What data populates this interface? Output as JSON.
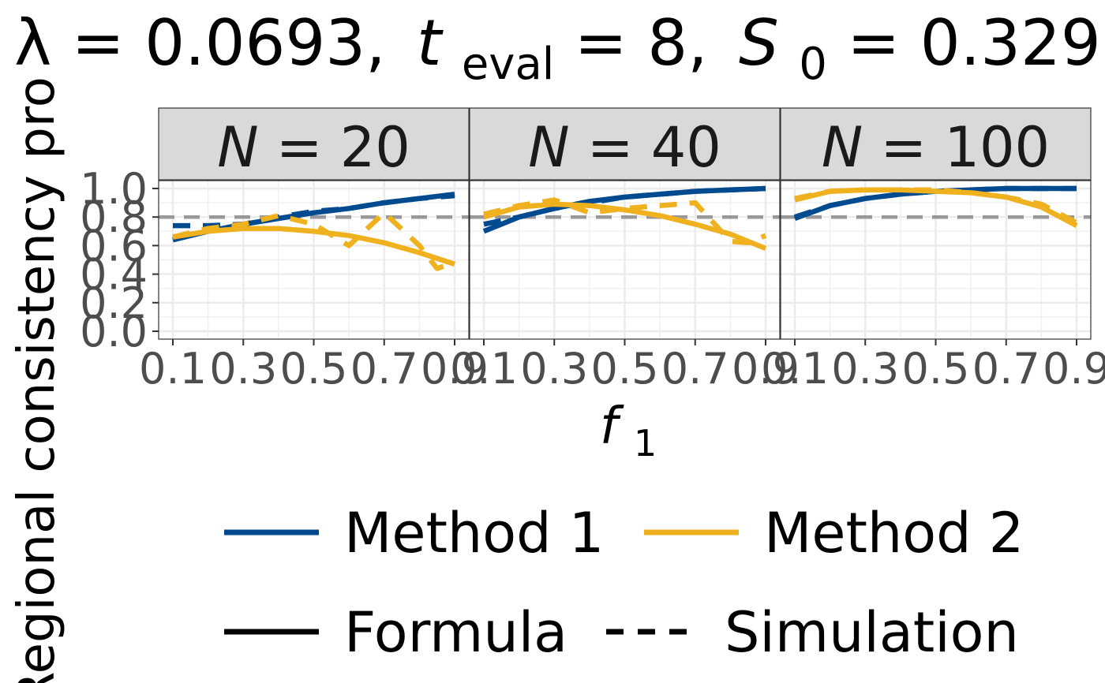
{
  "chart_data": {
    "type": "line",
    "title": {
      "lambda": "λ = 0.0693,",
      "t_main": "t",
      "t_sub": "eval",
      "t_rest": " = 8,",
      "s_main": "S",
      "s_sub": "0",
      "s_rest": " = 0.329"
    },
    "ylabel": "Regional consistency pro",
    "xlabel": {
      "main": "f",
      "sub": "1"
    },
    "ylim": [
      0,
      1
    ],
    "xlim": [
      0.1,
      0.9
    ],
    "y_ticks": [
      "0.0",
      "0.2",
      "0.4",
      "0.6",
      "0.8",
      "1.0"
    ],
    "x_tick_labels": [
      "0.1",
      "0.3",
      "0.5",
      "0.7",
      "0.9"
    ],
    "x_ticks": [
      0.1,
      0.3,
      0.5,
      0.7,
      0.9
    ],
    "reference_line": 0.8,
    "colors": {
      "method1": "#004a8f",
      "method2": "#efb11e",
      "reference": "#999999"
    },
    "legend": {
      "position": "bottom",
      "method1": "Method 1",
      "method2": "Method 2",
      "formula": "Formula",
      "simulation": "Simulation"
    },
    "panels": [
      {
        "strip": "N = 20",
        "series": [
          {
            "name": "Method 1 Formula",
            "method": 1,
            "linetype": "solid",
            "x": [
              0.1,
              0.2,
              0.3,
              0.4,
              0.5,
              0.6,
              0.7,
              0.8,
              0.9
            ],
            "y": [
              0.64,
              0.7,
              0.75,
              0.79,
              0.83,
              0.86,
              0.9,
              0.93,
              0.96
            ]
          },
          {
            "name": "Method 1 Simulation",
            "method": 1,
            "linetype": "dashed",
            "x": [
              0.1,
              0.2,
              0.3,
              0.4,
              0.5,
              0.6,
              0.7,
              0.8,
              0.9
            ],
            "y": [
              0.74,
              0.74,
              0.75,
              0.8,
              0.84,
              0.86,
              0.9,
              0.93,
              0.95
            ]
          },
          {
            "name": "Method 2 Formula",
            "method": 2,
            "linetype": "solid",
            "x": [
              0.1,
              0.2,
              0.3,
              0.4,
              0.5,
              0.6,
              0.7,
              0.8,
              0.9
            ],
            "y": [
              0.66,
              0.7,
              0.72,
              0.72,
              0.7,
              0.67,
              0.62,
              0.55,
              0.47
            ]
          },
          {
            "name": "Method 2 Simulation",
            "method": 2,
            "linetype": "dashed",
            "x": [
              0.1,
              0.2,
              0.3,
              0.4,
              0.5,
              0.6,
              0.7,
              0.8,
              0.85,
              0.9
            ],
            "y": [
              0.66,
              0.72,
              0.75,
              0.81,
              0.75,
              0.6,
              0.83,
              0.6,
              0.44,
              0.48
            ]
          }
        ]
      },
      {
        "strip": "N = 40",
        "series": [
          {
            "name": "Method 1 Formula",
            "method": 1,
            "linetype": "solid",
            "x": [
              0.1,
              0.2,
              0.3,
              0.4,
              0.5,
              0.6,
              0.7,
              0.8,
              0.9
            ],
            "y": [
              0.7,
              0.8,
              0.86,
              0.91,
              0.94,
              0.96,
              0.98,
              0.99,
              1.0
            ]
          },
          {
            "name": "Method 1 Simulation",
            "method": 1,
            "linetype": "dashed",
            "x": [
              0.1,
              0.2,
              0.3,
              0.4,
              0.5,
              0.6,
              0.7,
              0.8,
              0.9
            ],
            "y": [
              0.75,
              0.8,
              0.86,
              0.9,
              0.94,
              0.96,
              0.98,
              0.99,
              1.0
            ]
          },
          {
            "name": "Method 2 Formula",
            "method": 2,
            "linetype": "solid",
            "x": [
              0.1,
              0.2,
              0.3,
              0.4,
              0.5,
              0.6,
              0.7,
              0.8,
              0.9
            ],
            "y": [
              0.8,
              0.87,
              0.89,
              0.88,
              0.85,
              0.81,
              0.75,
              0.68,
              0.58
            ]
          },
          {
            "name": "Method 2 Simulation",
            "method": 2,
            "linetype": "dashed",
            "x": [
              0.1,
              0.2,
              0.3,
              0.4,
              0.5,
              0.6,
              0.7,
              0.8,
              0.85,
              0.9
            ],
            "y": [
              0.82,
              0.88,
              0.92,
              0.83,
              0.86,
              0.88,
              0.9,
              0.63,
              0.62,
              0.67
            ]
          }
        ]
      },
      {
        "strip": "N = 100",
        "series": [
          {
            "name": "Method 1 Formula",
            "method": 1,
            "linetype": "solid",
            "x": [
              0.1,
              0.2,
              0.3,
              0.4,
              0.5,
              0.6,
              0.7,
              0.8,
              0.9
            ],
            "y": [
              0.79,
              0.88,
              0.93,
              0.96,
              0.98,
              0.99,
              1.0,
              1.0,
              1.0
            ]
          },
          {
            "name": "Method 1 Simulation",
            "method": 1,
            "linetype": "dashed",
            "x": [
              0.1,
              0.2,
              0.3,
              0.4,
              0.5,
              0.6,
              0.7,
              0.8,
              0.9
            ],
            "y": [
              0.8,
              0.88,
              0.93,
              0.96,
              0.98,
              0.99,
              1.0,
              1.0,
              1.0
            ]
          },
          {
            "name": "Method 2 Formula",
            "method": 2,
            "linetype": "solid",
            "x": [
              0.1,
              0.2,
              0.3,
              0.4,
              0.5,
              0.6,
              0.7,
              0.8,
              0.9
            ],
            "y": [
              0.92,
              0.98,
              0.99,
              0.99,
              0.98,
              0.97,
              0.94,
              0.87,
              0.74
            ]
          },
          {
            "name": "Method 2 Simulation",
            "method": 2,
            "linetype": "dashed",
            "x": [
              0.1,
              0.2,
              0.3,
              0.4,
              0.5,
              0.6,
              0.7,
              0.8,
              0.9
            ],
            "y": [
              0.93,
              0.98,
              0.99,
              0.99,
              0.99,
              0.97,
              0.94,
              0.89,
              0.76
            ]
          }
        ]
      }
    ]
  }
}
